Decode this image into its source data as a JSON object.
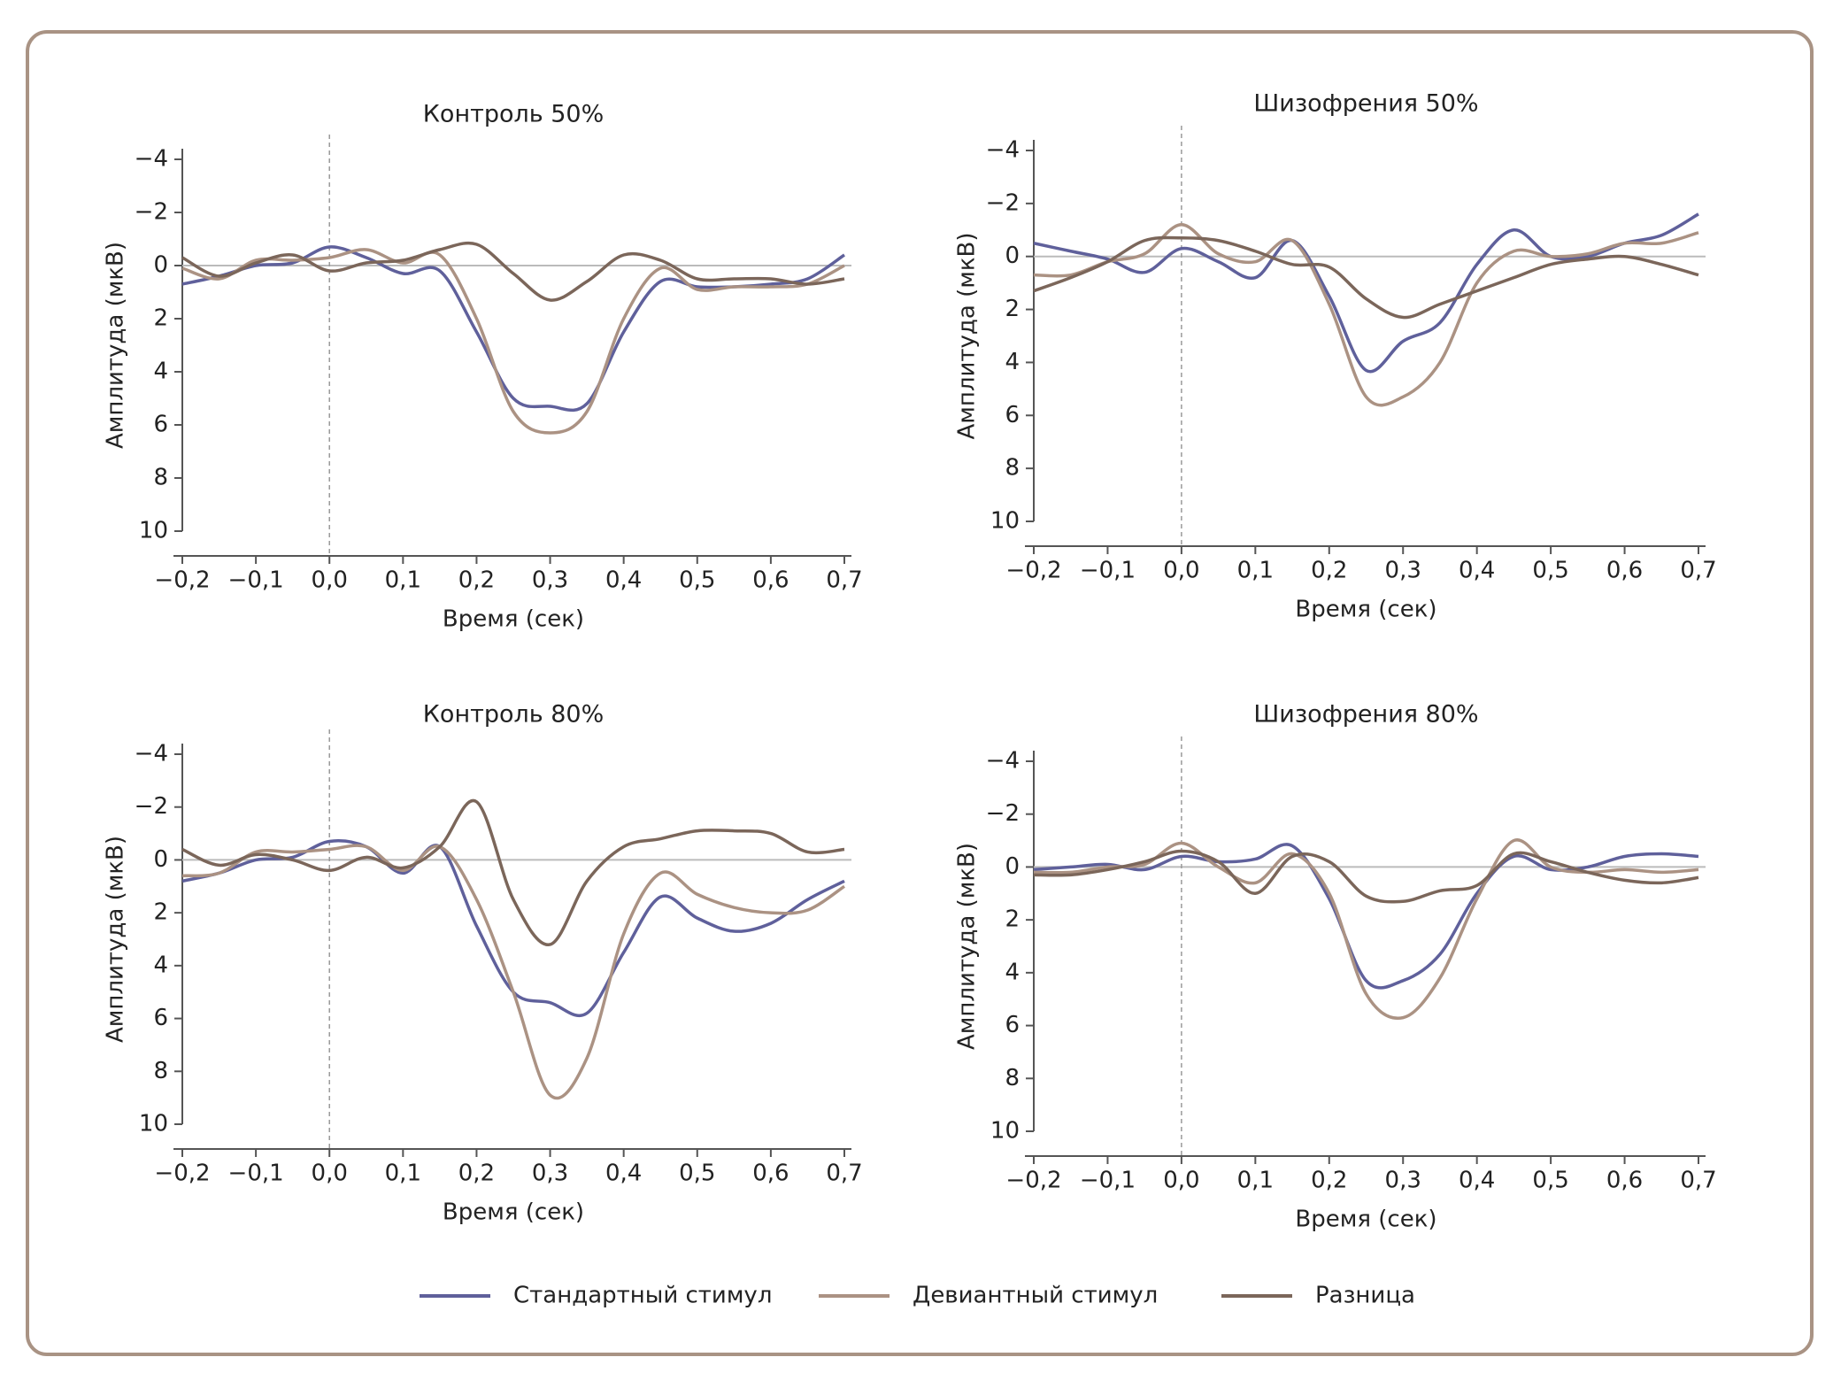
{
  "chart_data": [
    {
      "type": "line",
      "title": "Контроль 50%",
      "x_label": "Время (сек)",
      "y_label": "Амплитуда (мкВ)",
      "x": [
        -0.2,
        -0.15,
        -0.1,
        -0.05,
        0,
        0.05,
        0.1,
        0.15,
        0.2,
        0.25,
        0.3,
        0.35,
        0.4,
        0.45,
        0.5,
        0.55,
        0.6,
        0.65,
        0.7
      ],
      "xlim": [
        -0.2,
        0.7
      ],
      "ylim": [
        -4,
        10
      ],
      "y_inverted": true,
      "vline_x": 0,
      "hline_y": 0,
      "xticks": [
        {
          "value": -0.2,
          "label": "−0,2"
        },
        {
          "value": -0.1,
          "label": "−0,1"
        },
        {
          "value": 0,
          "label": "0,0"
        },
        {
          "value": 0.1,
          "label": "0,1"
        },
        {
          "value": 0.2,
          "label": "0,2"
        },
        {
          "value": 0.3,
          "label": "0,3"
        },
        {
          "value": 0.4,
          "label": "0,4"
        },
        {
          "value": 0.5,
          "label": "0,5"
        },
        {
          "value": 0.6,
          "label": "0,6"
        },
        {
          "value": 0.7,
          "label": "0,7"
        }
      ],
      "yticks": [
        {
          "value": -4,
          "label": "−4"
        },
        {
          "value": -2,
          "label": "−2"
        },
        0,
        2,
        4,
        6,
        8,
        10
      ],
      "series": [
        {
          "name": "Стандартный стимул",
          "color": "#5f609b",
          "values": [
            0.7,
            0.4,
            0,
            -0.1,
            -0.7,
            -0.3,
            0.3,
            0.2,
            2.5,
            5.0,
            5.3,
            5.2,
            2.5,
            0.6,
            0.8,
            0.8,
            0.7,
            0.5,
            -0.4
          ]
        },
        {
          "name": "Девиантный стимул",
          "color": "#ab9283",
          "values": [
            0.1,
            0.5,
            -0.2,
            -0.2,
            -0.3,
            -0.6,
            -0.1,
            -0.4,
            2.0,
            5.5,
            6.3,
            5.5,
            2.0,
            0.1,
            0.9,
            0.8,
            0.8,
            0.7,
            0.0
          ]
        },
        {
          "name": "Разница",
          "color": "#7b665a",
          "values": [
            -0.3,
            0.4,
            -0.1,
            -0.4,
            0.2,
            -0.1,
            -0.2,
            -0.6,
            -0.8,
            0.3,
            1.3,
            0.6,
            -0.4,
            -0.2,
            0.5,
            0.5,
            0.5,
            0.7,
            0.5
          ]
        }
      ]
    },
    {
      "type": "line",
      "title": "Шизофрения 50%",
      "x_label": "Время (сек)",
      "y_label": "Амплитуда (мкВ)",
      "x": [
        -0.2,
        -0.15,
        -0.1,
        -0.05,
        0,
        0.05,
        0.1,
        0.15,
        0.2,
        0.25,
        0.3,
        0.35,
        0.4,
        0.45,
        0.5,
        0.55,
        0.6,
        0.65,
        0.7
      ],
      "xlim": [
        -0.2,
        0.7
      ],
      "ylim": [
        -4,
        10
      ],
      "y_inverted": true,
      "vline_x": 0,
      "hline_y": 0,
      "xticks": [
        {
          "value": -0.2,
          "label": "−0,2"
        },
        {
          "value": -0.1,
          "label": "−0,1"
        },
        {
          "value": 0,
          "label": "0,0"
        },
        {
          "value": 0.1,
          "label": "0,1"
        },
        {
          "value": 0.2,
          "label": "0,2"
        },
        {
          "value": 0.3,
          "label": "0,3"
        },
        {
          "value": 0.4,
          "label": "0,4"
        },
        {
          "value": 0.5,
          "label": "0,5"
        },
        {
          "value": 0.6,
          "label": "0,6"
        },
        {
          "value": 0.7,
          "label": "0,7"
        }
      ],
      "yticks": [
        {
          "value": -4,
          "label": "−4"
        },
        {
          "value": -2,
          "label": "−2"
        },
        0,
        2,
        4,
        6,
        8,
        10
      ],
      "series": [
        {
          "name": "Стандартный стимул",
          "color": "#5f609b",
          "values": [
            -0.5,
            -0.2,
            0.1,
            0.6,
            -0.3,
            0.2,
            0.8,
            -0.6,
            1.5,
            4.3,
            3.2,
            2.5,
            0.3,
            -1.0,
            0,
            0,
            -0.5,
            -0.8,
            -1.6
          ]
        },
        {
          "name": "Девиантный стимул",
          "color": "#ab9283",
          "values": [
            0.7,
            0.7,
            0.2,
            -0.1,
            -1.2,
            -0.1,
            0.2,
            -0.6,
            1.8,
            5.3,
            5.3,
            4.0,
            1.0,
            -0.2,
            0,
            -0.1,
            -0.5,
            -0.5,
            -0.9
          ]
        },
        {
          "name": "Разница",
          "color": "#7b665a",
          "values": [
            1.3,
            0.8,
            0.2,
            -0.6,
            -0.7,
            -0.6,
            -0.2,
            0.3,
            0.4,
            1.6,
            2.3,
            1.8,
            1.3,
            0.8,
            0.3,
            0.1,
            0,
            0.3,
            0.7
          ]
        }
      ]
    },
    {
      "type": "line",
      "title": "Контроль 80%",
      "x_label": "Время (сек)",
      "y_label": "Амплитуда (мкВ)",
      "x": [
        -0.2,
        -0.15,
        -0.1,
        -0.05,
        0,
        0.05,
        0.1,
        0.15,
        0.2,
        0.25,
        0.3,
        0.35,
        0.4,
        0.45,
        0.5,
        0.55,
        0.6,
        0.65,
        0.7
      ],
      "xlim": [
        -0.2,
        0.7
      ],
      "ylim": [
        -4,
        10
      ],
      "y_inverted": true,
      "vline_x": 0,
      "hline_y": 0,
      "xticks": [
        {
          "value": -0.2,
          "label": "−0,2"
        },
        {
          "value": -0.1,
          "label": "−0,1"
        },
        {
          "value": 0,
          "label": "0,0"
        },
        {
          "value": 0.1,
          "label": "0,1"
        },
        {
          "value": 0.2,
          "label": "0,2"
        },
        {
          "value": 0.3,
          "label": "0,3"
        },
        {
          "value": 0.4,
          "label": "0,4"
        },
        {
          "value": 0.5,
          "label": "0,5"
        },
        {
          "value": 0.6,
          "label": "0,6"
        },
        {
          "value": 0.7,
          "label": "0,7"
        }
      ],
      "yticks": [
        {
          "value": -4,
          "label": "−4"
        },
        {
          "value": -2,
          "label": "−2"
        },
        0,
        2,
        4,
        6,
        8,
        10
      ],
      "series": [
        {
          "name": "Стандартный стимул",
          "color": "#5f609b",
          "values": [
            0.8,
            0.5,
            0,
            -0.1,
            -0.7,
            -0.5,
            0.5,
            -0.5,
            2.5,
            5.0,
            5.4,
            5.8,
            3.5,
            1.4,
            2.2,
            2.7,
            2.4,
            1.5,
            0.8
          ]
        },
        {
          "name": "Девиантный стимул",
          "color": "#ab9283",
          "values": [
            0.6,
            0.5,
            -0.3,
            -0.3,
            -0.4,
            -0.5,
            0.4,
            -0.5,
            1.5,
            5.0,
            8.9,
            7.5,
            2.8,
            0.5,
            1.3,
            1.8,
            2.0,
            1.9,
            1.0
          ]
        },
        {
          "name": "Разница",
          "color": "#7b665a",
          "values": [
            -0.4,
            0.2,
            -0.2,
            0.0,
            0.4,
            -0.1,
            0.3,
            -0.5,
            -2.2,
            1.5,
            3.2,
            0.8,
            -0.5,
            -0.8,
            -1.1,
            -1.1,
            -1.0,
            -0.3,
            -0.4
          ]
        }
      ]
    },
    {
      "type": "line",
      "title": "Шизофрения 80%",
      "x_label": "Время (сек)",
      "y_label": "Амплитуда (мкВ)",
      "x": [
        -0.2,
        -0.15,
        -0.1,
        -0.05,
        0,
        0.05,
        0.1,
        0.15,
        0.2,
        0.25,
        0.3,
        0.35,
        0.4,
        0.45,
        0.5,
        0.55,
        0.6,
        0.65,
        0.7
      ],
      "xlim": [
        -0.2,
        0.7
      ],
      "ylim": [
        -4,
        10
      ],
      "y_inverted": true,
      "vline_x": 0,
      "hline_y": 0,
      "xticks": [
        {
          "value": -0.2,
          "label": "−0,2"
        },
        {
          "value": -0.1,
          "label": "−0,1"
        },
        {
          "value": 0,
          "label": "0,0"
        },
        {
          "value": 0.1,
          "label": "0,1"
        },
        {
          "value": 0.2,
          "label": "0,2"
        },
        {
          "value": 0.3,
          "label": "0,3"
        },
        {
          "value": 0.4,
          "label": "0,4"
        },
        {
          "value": 0.5,
          "label": "0,5"
        },
        {
          "value": 0.6,
          "label": "0,6"
        },
        {
          "value": 0.7,
          "label": "0,7"
        }
      ],
      "yticks": [
        {
          "value": -4,
          "label": "−4"
        },
        {
          "value": -2,
          "label": "−2"
        },
        0,
        2,
        4,
        6,
        8,
        10
      ],
      "series": [
        {
          "name": "Стандартный стимул",
          "color": "#5f609b",
          "values": [
            0.1,
            0,
            -0.1,
            0.1,
            -0.4,
            -0.2,
            -0.3,
            -0.8,
            1.2,
            4.3,
            4.3,
            3.3,
            1.0,
            -0.4,
            0.1,
            0,
            -0.4,
            -0.5,
            -0.4
          ]
        },
        {
          "name": "Девиантный стимул",
          "color": "#ab9283",
          "values": [
            0.2,
            0.2,
            0,
            -0.1,
            -0.9,
            0,
            0.6,
            -0.5,
            1.0,
            4.8,
            5.7,
            4.2,
            1.2,
            -1.0,
            0,
            0.2,
            0.1,
            0.2,
            0.1
          ]
        },
        {
          "name": "Разница",
          "color": "#7b665a",
          "values": [
            0.3,
            0.3,
            0.1,
            -0.2,
            -0.6,
            -0.2,
            1.0,
            -0.4,
            -0.2,
            1.1,
            1.3,
            0.9,
            0.7,
            -0.5,
            -0.2,
            0.2,
            0.5,
            0.6,
            0.4
          ]
        }
      ]
    }
  ]
}
